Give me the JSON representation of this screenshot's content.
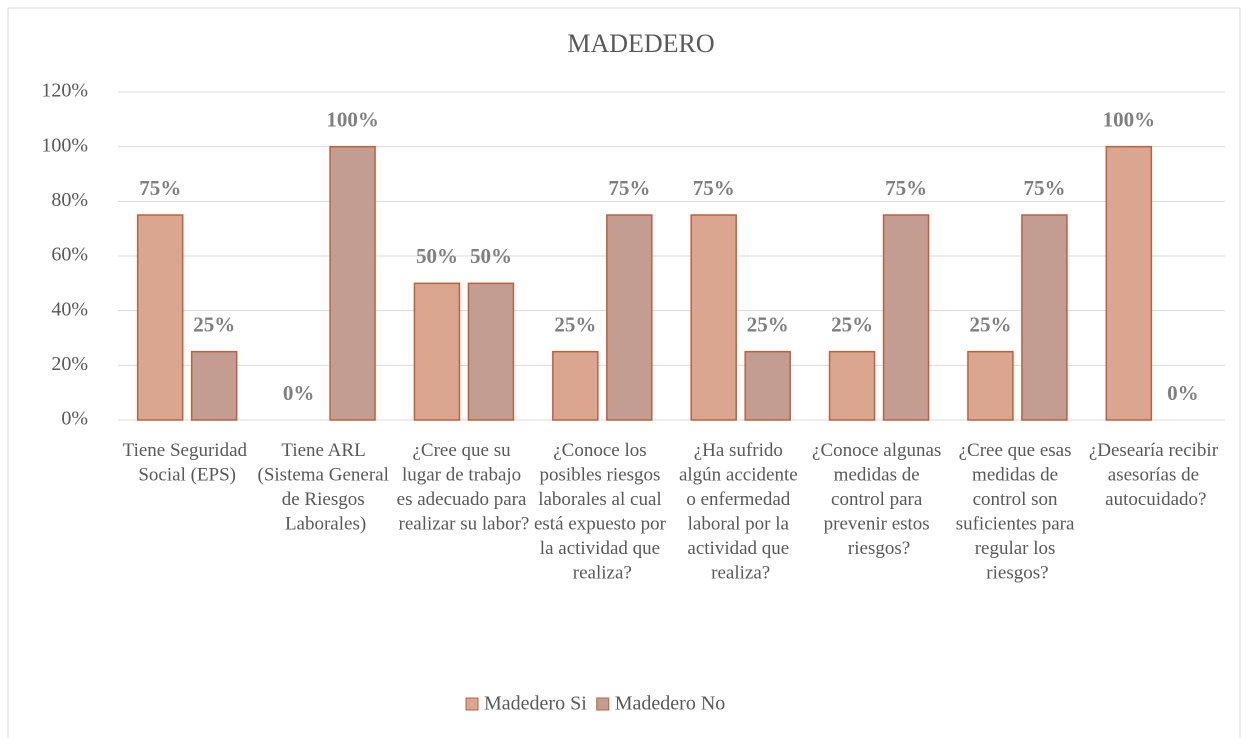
{
  "chart_data": {
    "type": "bar",
    "title": "MADEDERO",
    "categories": [
      "Tiene Seguridad Social (EPS)",
      "Tiene ARL (Sistema General de Riesgos Laborales)",
      "¿Cree que su lugar de trabajo es adecuado para realizar su labor?",
      "¿Conoce los posibles riesgos laborales al cual está expuesto por la actividad que realiza?",
      "¿Ha sufrido algún accidente o enfermedad laboral por la actividad que realiza?",
      "¿Conoce algunas medidas de control para prevenir estos riesgos?",
      "¿Cree que esas medidas de control son suficientes para regular los riesgos?",
      "¿Desearía recibir asesorías de autocuidado?"
    ],
    "series": [
      {
        "name": "Madedero Si",
        "color": "#dba68f",
        "values": [
          75,
          0,
          50,
          25,
          75,
          25,
          25,
          100
        ],
        "value_labels": [
          "75%",
          "0%",
          "50%",
          "25%",
          "75%",
          "25%",
          "25%",
          "100%"
        ]
      },
      {
        "name": "Madedero No",
        "color": "#c39c92",
        "values": [
          25,
          100,
          50,
          75,
          25,
          75,
          75,
          0
        ],
        "value_labels": [
          "25%",
          "100%",
          "50%",
          "75%",
          "25%",
          "75%",
          "75%",
          "0%"
        ]
      }
    ],
    "ylim": [
      0,
      120
    ],
    "yticks": [
      {
        "value": 0,
        "label": "0%"
      },
      {
        "value": 20,
        "label": "20%"
      },
      {
        "value": 40,
        "label": "40%"
      },
      {
        "value": 60,
        "label": "60%"
      },
      {
        "value": 80,
        "label": "80%"
      },
      {
        "value": 100,
        "label": "100%"
      },
      {
        "value": 120,
        "label": "120%"
      }
    ],
    "grid": true,
    "legend": "bottom"
  }
}
